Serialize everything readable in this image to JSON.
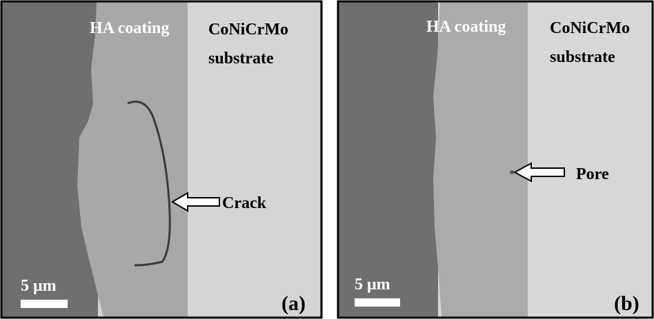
{
  "panels": [
    {
      "coating_label": "HA coating",
      "substrate_label": [
        "CoNiCrMo",
        "substrate"
      ],
      "arrow_label": "Crack",
      "scale_label": "5 μm",
      "panel_label": "(a)"
    },
    {
      "coating_label": "HA coating",
      "substrate_label": [
        "CoNiCrMo",
        "substrate"
      ],
      "arrow_label": "Pore",
      "scale_label": "5 μm",
      "panel_label": "(b)"
    }
  ]
}
